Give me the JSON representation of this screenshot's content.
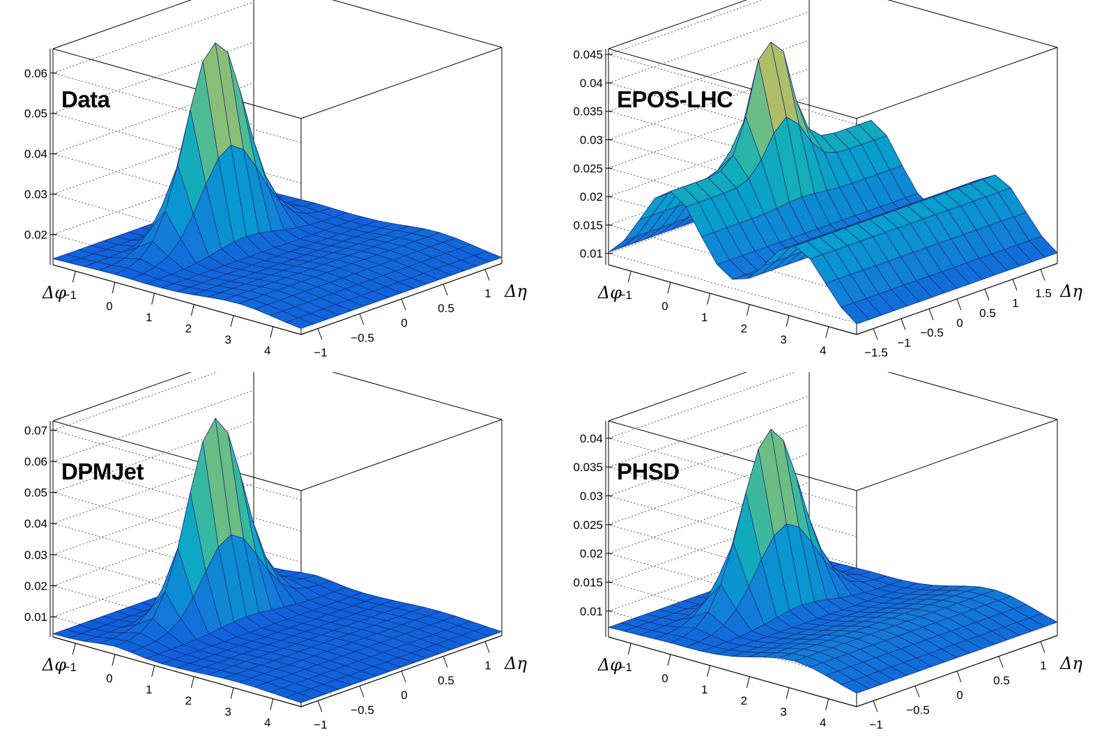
{
  "chart_data": [
    {
      "type": "surface3d",
      "title": "Data",
      "xlabel": "Δη",
      "ylabel": "Δφ",
      "zlim": [
        0.0125,
        0.066
      ],
      "z_ticks": [
        "0.02",
        "0.03",
        "0.04",
        "0.05",
        "0.06"
      ],
      "eta_ticks": [
        "−1",
        "−0.5",
        "0",
        "0.5",
        "1"
      ],
      "phi_ticks": [
        "−1",
        "0",
        "1",
        "2",
        "3",
        "4"
      ],
      "eta_range": [
        -1.2,
        1.2
      ],
      "phi_range": [
        -1.57,
        4.71
      ],
      "model": {
        "base": 0.0135,
        "ridge_amp": 0.0008,
        "ridge_width": 1.6,
        "peak_amp": 0.0495,
        "peak_eta_w": 0.35,
        "peak_phi_w": 0.33,
        "away_amp": 0.0022,
        "away_width": 0.9,
        "flat_top": 0.063
      },
      "grid": true
    },
    {
      "type": "surface3d",
      "title": "EPOS-LHC",
      "xlabel": "Δη",
      "ylabel": "Δφ",
      "zlim": [
        0.008,
        0.046
      ],
      "z_ticks": [
        "0.01",
        "0.015",
        "0.02",
        "0.025",
        "0.03",
        "0.035",
        "0.04",
        "0.045"
      ],
      "eta_ticks": [
        "−1.5",
        "−1",
        "−0.5",
        "0",
        "0.5",
        "1",
        "1.5"
      ],
      "phi_ticks": [
        "−1",
        "0",
        "1",
        "2",
        "3",
        "4"
      ],
      "eta_range": [
        -1.8,
        1.8
      ],
      "phi_range": [
        -1.57,
        4.71
      ],
      "model": {
        "base": 0.0085,
        "ridge_amp": 0.0155,
        "ridge_width": 0.75,
        "peak_amp": 0.0225,
        "peak_eta_w": 0.32,
        "peak_phi_w": 0.3,
        "away_amp": 0.012,
        "away_width": 0.75,
        "flat_top": 0.044
      },
      "grid": true
    },
    {
      "type": "surface3d",
      "title": "DPMJet",
      "xlabel": "Δη",
      "ylabel": "Δφ",
      "zlim": [
        0.0035,
        0.073
      ],
      "z_ticks": [
        "0.01",
        "0.02",
        "0.03",
        "0.04",
        "0.05",
        "0.06",
        "0.07"
      ],
      "eta_ticks": [
        "−1",
        "−0.5",
        "0",
        "0.5",
        "1"
      ],
      "phi_ticks": [
        "−1",
        "0",
        "1",
        "2",
        "3",
        "4"
      ],
      "eta_range": [
        -1.2,
        1.2
      ],
      "phi_range": [
        -1.57,
        4.71
      ],
      "model": {
        "base": 0.0045,
        "ridge_amp": 0.0015,
        "ridge_width": 0.5,
        "peak_amp": 0.062,
        "peak_eta_w": 0.33,
        "peak_phi_w": 0.3,
        "away_amp": 0.0012,
        "away_width": 0.9,
        "flat_top": 0.069
      },
      "grid": true
    },
    {
      "type": "surface3d",
      "title": "PHSD",
      "xlabel": "Δη",
      "ylabel": "Δφ",
      "zlim": [
        0.0055,
        0.043
      ],
      "z_ticks": [
        "0.01",
        "0.015",
        "0.02",
        "0.025",
        "0.03",
        "0.035",
        "0.04"
      ],
      "eta_ticks": [
        "−1",
        "−0.5",
        "0",
        "0.5",
        "1"
      ],
      "phi_ticks": [
        "−1",
        "0",
        "1",
        "2",
        "3",
        "4"
      ],
      "eta_range": [
        -1.2,
        1.2
      ],
      "phi_range": [
        -1.57,
        4.71
      ],
      "model": {
        "base": 0.0068,
        "ridge_amp": 0.0006,
        "ridge_width": 1.6,
        "peak_amp": 0.031,
        "peak_eta_w": 0.35,
        "peak_phi_w": 0.33,
        "away_amp": 0.0035,
        "away_width": 1.0,
        "flat_top": 0.0405
      },
      "grid": true
    }
  ]
}
